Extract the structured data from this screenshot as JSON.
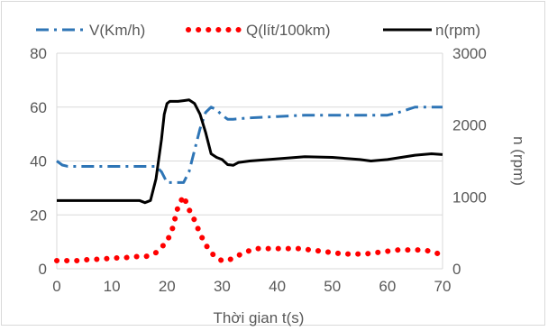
{
  "chart_data": {
    "type": "line",
    "xlabel": "Thời gian t(s)",
    "ylabel_right": "n (rpm)",
    "xlim": [
      0,
      70
    ],
    "ylim_left": [
      0,
      80
    ],
    "ylim_right": [
      0,
      3000
    ],
    "x_ticks": [
      "0",
      "10",
      "20",
      "30",
      "40",
      "50",
      "60",
      "70"
    ],
    "y_ticks_left": [
      "0",
      "20",
      "40",
      "60",
      "80"
    ],
    "y_ticks_right": [
      "0",
      "1000",
      "2000",
      "3000"
    ],
    "grid": "horizontal",
    "legend_position": "top",
    "series": [
      {
        "name": "V(Km/h)",
        "axis": "left",
        "style": "dash-dot",
        "color": "#2e75b6",
        "x": [
          0,
          1,
          2,
          5,
          10,
          15,
          17,
          18,
          19,
          20,
          21,
          22,
          23,
          24,
          25,
          26,
          27,
          28,
          29,
          30,
          31,
          32,
          35,
          40,
          45,
          50,
          55,
          58,
          60,
          62,
          65,
          70
        ],
        "y": [
          40,
          38.5,
          38,
          38,
          38,
          38,
          38,
          38,
          36,
          32,
          32,
          32,
          32,
          36,
          44,
          52,
          58,
          60,
          59,
          57,
          55.5,
          55.5,
          56,
          56.5,
          57,
          57,
          57,
          57,
          57,
          58,
          60,
          60
        ]
      },
      {
        "name": "Q(lít/100km)",
        "axis": "left",
        "style": "dotted",
        "color": "#ff0000",
        "x": [
          0,
          2,
          4,
          6,
          8,
          10,
          12,
          14,
          16,
          17,
          18,
          19,
          20,
          21,
          22,
          23,
          24,
          25,
          26,
          27,
          28,
          29,
          30,
          31,
          32,
          33,
          34,
          36,
          38,
          40,
          42,
          44,
          46,
          48,
          50,
          52,
          54,
          56,
          58,
          60,
          62,
          64,
          66,
          68,
          70
        ],
        "y": [
          3,
          3,
          3,
          3.5,
          3.5,
          4,
          4,
          4.5,
          4.5,
          5,
          6,
          8,
          10,
          15,
          23,
          27,
          22,
          18,
          13,
          9,
          6,
          4,
          3,
          3,
          4,
          5,
          6,
          7.5,
          7.5,
          7.5,
          7.5,
          7.5,
          7,
          6.5,
          6,
          5.5,
          5.5,
          5.5,
          6,
          6.5,
          7,
          7,
          7,
          6.5,
          5
        ]
      },
      {
        "name": "n(rpm)",
        "axis": "right",
        "style": "solid",
        "color": "#000000",
        "x": [
          0,
          5,
          10,
          15,
          16,
          17,
          18,
          19,
          19.5,
          20,
          20.5,
          21,
          22,
          23,
          24,
          25,
          26,
          27,
          28,
          29,
          30,
          31,
          32,
          33,
          35,
          40,
          45,
          50,
          55,
          57,
          60,
          65,
          68,
          70
        ],
        "y": [
          950,
          950,
          950,
          950,
          920,
          950,
          1250,
          1800,
          2150,
          2300,
          2330,
          2330,
          2330,
          2340,
          2350,
          2300,
          2150,
          1900,
          1600,
          1550,
          1520,
          1450,
          1440,
          1480,
          1500,
          1530,
          1560,
          1550,
          1520,
          1500,
          1520,
          1580,
          1600,
          1590
        ]
      }
    ]
  }
}
